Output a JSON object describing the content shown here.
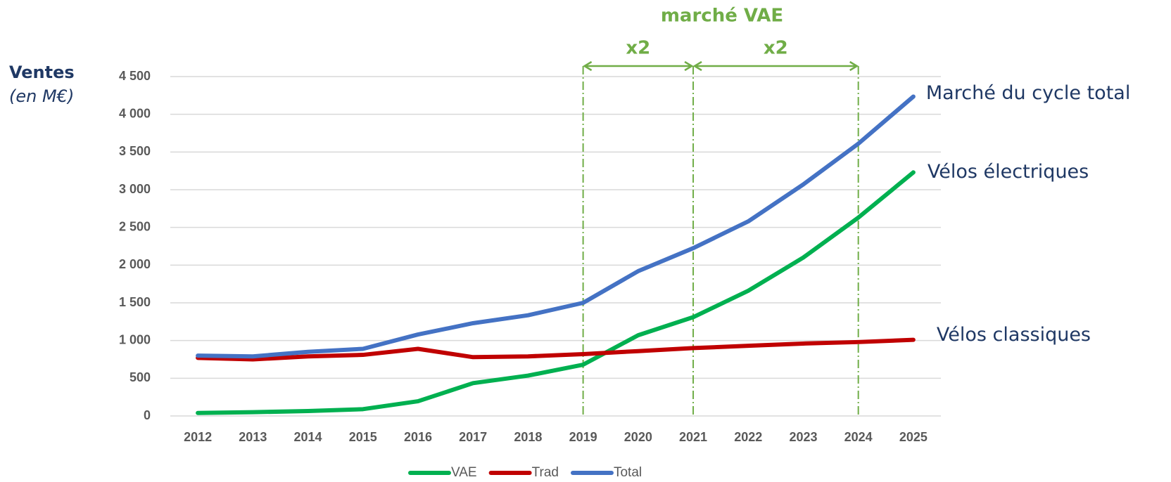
{
  "chart_data": {
    "type": "line",
    "y_label": "Ventes",
    "y_unit": "(en M€)",
    "title": "marché VAE",
    "categories": [
      "2012",
      "2013",
      "2014",
      "2015",
      "2016",
      "2017",
      "2018",
      "2019",
      "2020",
      "2021",
      "2022",
      "2023",
      "2024",
      "2025"
    ],
    "series": [
      {
        "name": "VAE",
        "color": "#00b050",
        "end_label": "Vélos électriques",
        "values": [
          40,
          50,
          65,
          90,
          195,
          435,
          535,
          680,
          1070,
          1310,
          1660,
          2100,
          2630,
          3230
        ]
      },
      {
        "name": "Trad",
        "color": "#c00000",
        "end_label": "Vélos classiques",
        "values": [
          770,
          750,
          790,
          810,
          890,
          780,
          790,
          820,
          860,
          900,
          930,
          960,
          980,
          1010
        ]
      },
      {
        "name": "Total",
        "color": "#4472c4",
        "end_label": "Marché du cycle total",
        "values": [
          800,
          790,
          850,
          890,
          1080,
          1230,
          1335,
          1500,
          1920,
          2225,
          2580,
          3070,
          3610,
          4235
        ]
      }
    ],
    "annotations": [
      {
        "text": "x2",
        "from": "2019",
        "to": "2021"
      },
      {
        "text": "x2",
        "from": "2021",
        "to": "2024"
      }
    ],
    "ylim": [
      0,
      4500
    ],
    "yticks": [
      0,
      500,
      {
        "value": 1000,
        "label": "1 000"
      },
      {
        "value": 1500,
        "label": "1 500"
      },
      {
        "value": 2000,
        "label": "2 000"
      },
      {
        "value": 2500,
        "label": "2 500"
      },
      {
        "value": 3000,
        "label": "3 000"
      },
      {
        "value": 3500,
        "label": "3 500"
      },
      {
        "value": 4000,
        "label": "4 000"
      },
      {
        "value": 4500,
        "label": "4 500"
      }
    ],
    "grid": true,
    "legend": "bottom"
  }
}
